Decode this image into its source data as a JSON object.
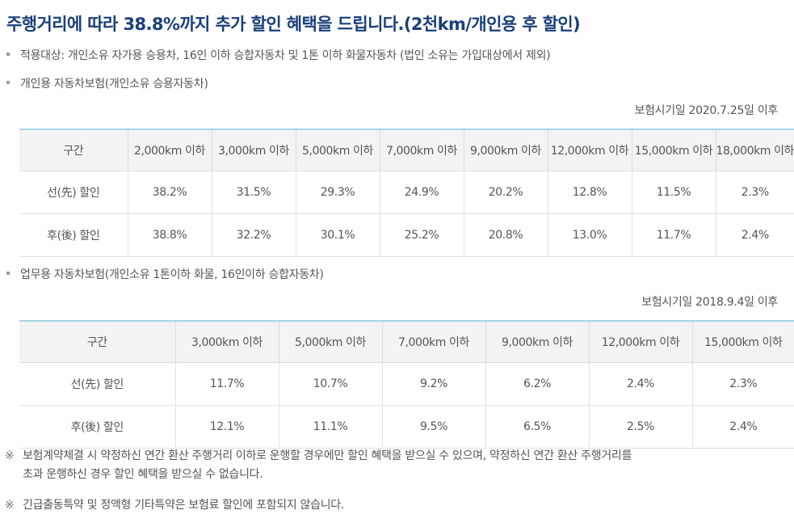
{
  "title": "주행거리에 따라 38.8%까지 추가 할인 혜택을 드립니다.(2천km/개인용 후 할인)",
  "eligibility": "적용대상: 개인소유 자가용 승용차, 16인 이하 승합자동차 및 1톤 이하 화물자동차 (법인 소유는 가입대상에서 제외)",
  "personal": {
    "heading": "개인용 자동차보험(개인소유 승용자동차)",
    "basis": "보험시기일 2020.7.25일 이후",
    "headers": [
      "구간",
      "2,000km 이하",
      "3,000km 이하",
      "5,000km 이하",
      "7,000km 이하",
      "9,000km 이하",
      "12,000km 이하",
      "15,000km 이하",
      "18,000km 이하"
    ],
    "rows": [
      {
        "label": "선(先) 할인",
        "values": [
          "38.2%",
          "31.5%",
          "29.3%",
          "24.9%",
          "20.2%",
          "12.8%",
          "11.5%",
          "2.3%"
        ]
      },
      {
        "label": "후(後) 할인",
        "values": [
          "38.8%",
          "32.2%",
          "30.1%",
          "25.2%",
          "20.8%",
          "13.0%",
          "11.7%",
          "2.4%"
        ]
      }
    ]
  },
  "business": {
    "heading": "업무용 자동차보험(개인소유 1톤이하 화물, 16인이하 승합자동차)",
    "basis": "보험시기일 2018.9.4일 이후",
    "headers": [
      "구간",
      "3,000km 이하",
      "5,000km 이하",
      "7,000km 이하",
      "9,000km 이하",
      "12,000km 이하",
      "15,000km 이하"
    ],
    "rows": [
      {
        "label": "선(先) 할인",
        "values": [
          "11.7%",
          "10.7%",
          "9.2%",
          "6.2%",
          "2.4%",
          "2.3%"
        ]
      },
      {
        "label": "후(後) 할인",
        "values": [
          "12.1%",
          "11.1%",
          "9.5%",
          "6.5%",
          "2.5%",
          "2.4%"
        ]
      }
    ]
  },
  "notes": {
    "mark": "※",
    "note1_line1": "보험계약체결 시 약정하신 연간 환산 주행거리 이하로 운행할 경우에만 할인 혜택을 받으실 수 있으며, 약정하신 연간 환산 주행거리를",
    "note1_line2": "초과 운행하신 경우 할인 혜택을 받으실 수 없습니다.",
    "note2": "긴급출동특약 및 정액형 기타특약은 보험료 할인에 포함되지 않습니다."
  }
}
